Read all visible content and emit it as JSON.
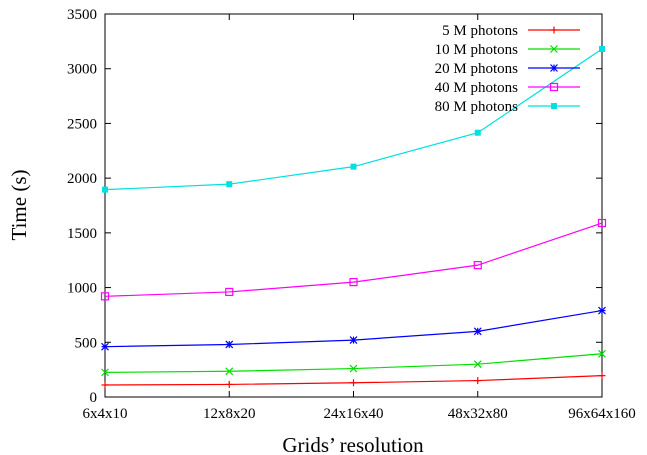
{
  "chart_data": {
    "type": "line",
    "xlabel": "Grids’ resolution",
    "ylabel": "Time (s)",
    "categories": [
      "6x4x10",
      "12x8x20",
      "24x16x40",
      "48x32x80",
      "96x64x160"
    ],
    "ylim": [
      0,
      3500
    ],
    "yticks": [
      0,
      500,
      1000,
      1500,
      2000,
      2500,
      3000,
      3500
    ],
    "grid": false,
    "legend_position": "top-right",
    "series": [
      {
        "name": "5 M photons",
        "color": "#ff0000",
        "marker": "plus",
        "values": [
          110,
          115,
          130,
          150,
          195
        ]
      },
      {
        "name": "10 M photons",
        "color": "#00e000",
        "marker": "x",
        "values": [
          225,
          235,
          260,
          300,
          395
        ]
      },
      {
        "name": "20 M photons",
        "color": "#0000ff",
        "marker": "star",
        "values": [
          460,
          480,
          520,
          600,
          790
        ]
      },
      {
        "name": "40 M photons",
        "color": "#ff00ff",
        "marker": "open-square",
        "values": [
          920,
          960,
          1050,
          1205,
          1590
        ]
      },
      {
        "name": "80 M photons",
        "color": "#00e0e0",
        "marker": "filled-square",
        "values": [
          1895,
          1945,
          2105,
          2415,
          3180
        ]
      }
    ]
  }
}
